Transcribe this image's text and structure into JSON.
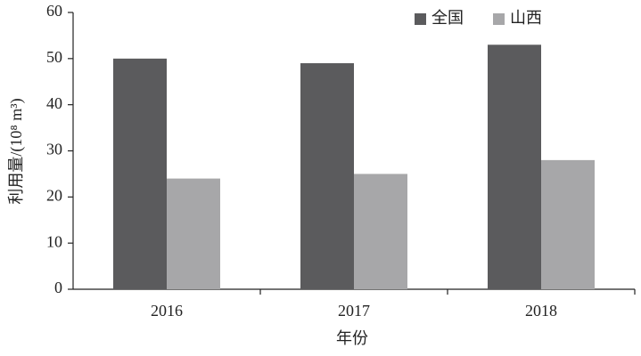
{
  "chart_data": {
    "type": "bar",
    "x_label": "年份",
    "y_label": "利用量/(10⁸ m³)",
    "categories": [
      "2016",
      "2017",
      "2018"
    ],
    "series": [
      {
        "name": "全国",
        "color": "#5b5b5d",
        "values": [
          50,
          49,
          53
        ]
      },
      {
        "name": "山西",
        "color": "#a7a7a9",
        "values": [
          24,
          25,
          28
        ]
      }
    ],
    "ylim": [
      0,
      60
    ],
    "yticks": [
      0,
      10,
      20,
      30,
      40,
      50,
      60
    ],
    "grid": false,
    "legend": "top-right"
  }
}
